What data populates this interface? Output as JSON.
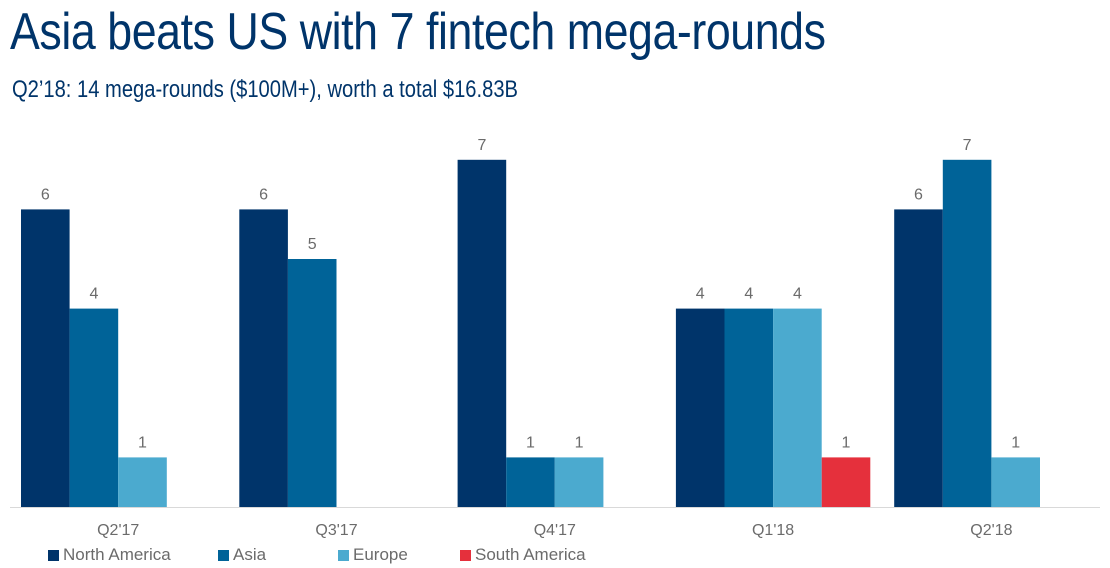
{
  "header": {
    "title": "Asia beats US with 7 fintech mega-rounds",
    "subtitle": "Q2’18: 14 mega-rounds ($100M+), worth a total $16.83B"
  },
  "chart_data": {
    "type": "bar",
    "title": "Asia beats US with 7 fintech mega-rounds",
    "subtitle": "Q2’18: 14 mega-rounds ($100M+), worth a total $16.83B",
    "categories": [
      "Q2'17",
      "Q3'17",
      "Q4'17",
      "Q1'18",
      "Q2'18"
    ],
    "series": [
      {
        "name": "North America",
        "color": "#00346a",
        "values": [
          6,
          6,
          7,
          4,
          6
        ]
      },
      {
        "name": "Asia",
        "color": "#006398",
        "values": [
          4,
          5,
          1,
          4,
          7
        ]
      },
      {
        "name": "Europe",
        "color": "#4baacf",
        "values": [
          1,
          0,
          1,
          4,
          1
        ]
      },
      {
        "name": "South America",
        "color": "#e5303c",
        "values": [
          0,
          0,
          0,
          1,
          0
        ]
      }
    ],
    "xlabel": "",
    "ylabel": "",
    "ylim": [
      0,
      7.3
    ],
    "grid": false,
    "data_labels": true,
    "legend_position": "bottom-left"
  }
}
